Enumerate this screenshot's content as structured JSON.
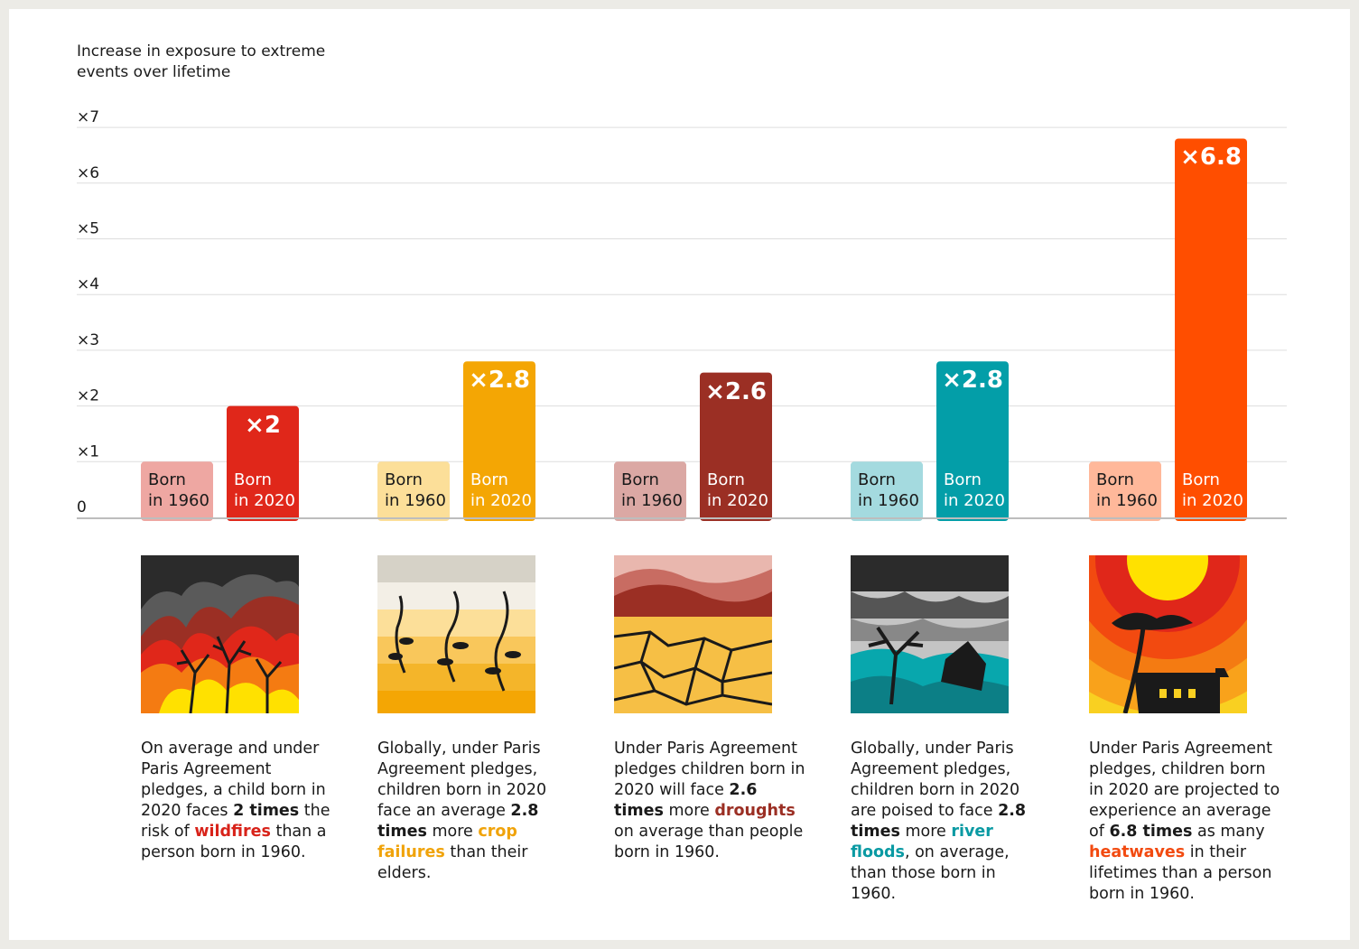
{
  "chart_data": {
    "type": "bar",
    "ylabel": "Increase in exposure to extreme events over lifetime",
    "y_ticks": [
      "0",
      "×1",
      "×2",
      "×3",
      "×4",
      "×5",
      "×6",
      "×7"
    ],
    "ylim": [
      0,
      7
    ],
    "grid": true,
    "groups": [
      {
        "event": "wildfires",
        "born_1960": {
          "label": "Born\nin 1960",
          "value": 1,
          "color": "#eea7a2"
        },
        "born_2020": {
          "label": "Born\nin 2020",
          "value": 2,
          "value_label": "×2",
          "color": "#e0271a"
        },
        "event_color": "#d8231a",
        "caption_parts": [
          {
            "text": "On average and under Paris Agreement pledges, a child born in 2020 faces ",
            "style": "normal"
          },
          {
            "text": "2 times",
            "style": "bold"
          },
          {
            "text": " the risk of ",
            "style": "normal"
          },
          {
            "text": "wildfires",
            "style": "event"
          },
          {
            "text": " than a person born in 1960.",
            "style": "normal"
          }
        ]
      },
      {
        "event": "crop failures",
        "born_1960": {
          "label": "Born\nin 1960",
          "value": 1,
          "color": "#fcdf99"
        },
        "born_2020": {
          "label": "Born\nin 2020",
          "value": 2.8,
          "value_label": "×2.8",
          "color": "#f4a604"
        },
        "event_color": "#f0a30a",
        "caption_parts": [
          {
            "text": "Globally, under Paris Agreement pledges, children born in 2020 face an average ",
            "style": "normal"
          },
          {
            "text": "2.8 times",
            "style": "bold"
          },
          {
            "text": " more ",
            "style": "normal"
          },
          {
            "text": "crop failures",
            "style": "event"
          },
          {
            "text": " than their elders.",
            "style": "normal"
          }
        ]
      },
      {
        "event": "droughts",
        "born_1960": {
          "label": "Born\nin 1960",
          "value": 1,
          "color": "#dba8a4"
        },
        "born_2020": {
          "label": "Born\nin 2020",
          "value": 2.6,
          "value_label": "×2.6",
          "color": "#9b2f24"
        },
        "event_color": "#9b2f24",
        "caption_parts": [
          {
            "text": "Under Paris Agreement pledges children born in 2020 will face ",
            "style": "normal"
          },
          {
            "text": "2.6 times",
            "style": "bold"
          },
          {
            "text": " more ",
            "style": "normal"
          },
          {
            "text": "droughts",
            "style": "event"
          },
          {
            "text": " on average than people born in 1960.",
            "style": "normal"
          }
        ]
      },
      {
        "event": "river floods",
        "born_1960": {
          "label": "Born\nin 1960",
          "value": 1,
          "color": "#a4dadf"
        },
        "born_2020": {
          "label": "Born\nin 2020",
          "value": 2.8,
          "value_label": "×2.8",
          "color": "#039ea8"
        },
        "event_color": "#0a9aa3",
        "caption_parts": [
          {
            "text": "Globally, under Paris Agreement pledges, children born in 2020 are poised to face ",
            "style": "normal"
          },
          {
            "text": "2.8 times",
            "style": "bold"
          },
          {
            "text": " more ",
            "style": "normal"
          },
          {
            "text": "river floods",
            "style": "event"
          },
          {
            "text": ", on average, than those born in 1960.",
            "style": "normal"
          }
        ]
      },
      {
        "event": "heatwaves",
        "born_1960": {
          "label": "Born\nin 1960",
          "value": 1,
          "color": "#ffb89a"
        },
        "born_2020": {
          "label": "Born\nin 2020",
          "value": 6.8,
          "value_label": "×6.8",
          "color": "#ff4e00"
        },
        "event_color": "#f24a10",
        "caption_parts": [
          {
            "text": "Under Paris Agreement pledges, children born in 2020 are projected to experience an average of ",
            "style": "normal"
          },
          {
            "text": "6.8 times",
            "style": "bold"
          },
          {
            "text": " as many ",
            "style": "normal"
          },
          {
            "text": "heatwaves",
            "style": "event"
          },
          {
            "text": " in their lifetimes than a person born in 1960.",
            "style": "normal"
          }
        ]
      }
    ]
  }
}
